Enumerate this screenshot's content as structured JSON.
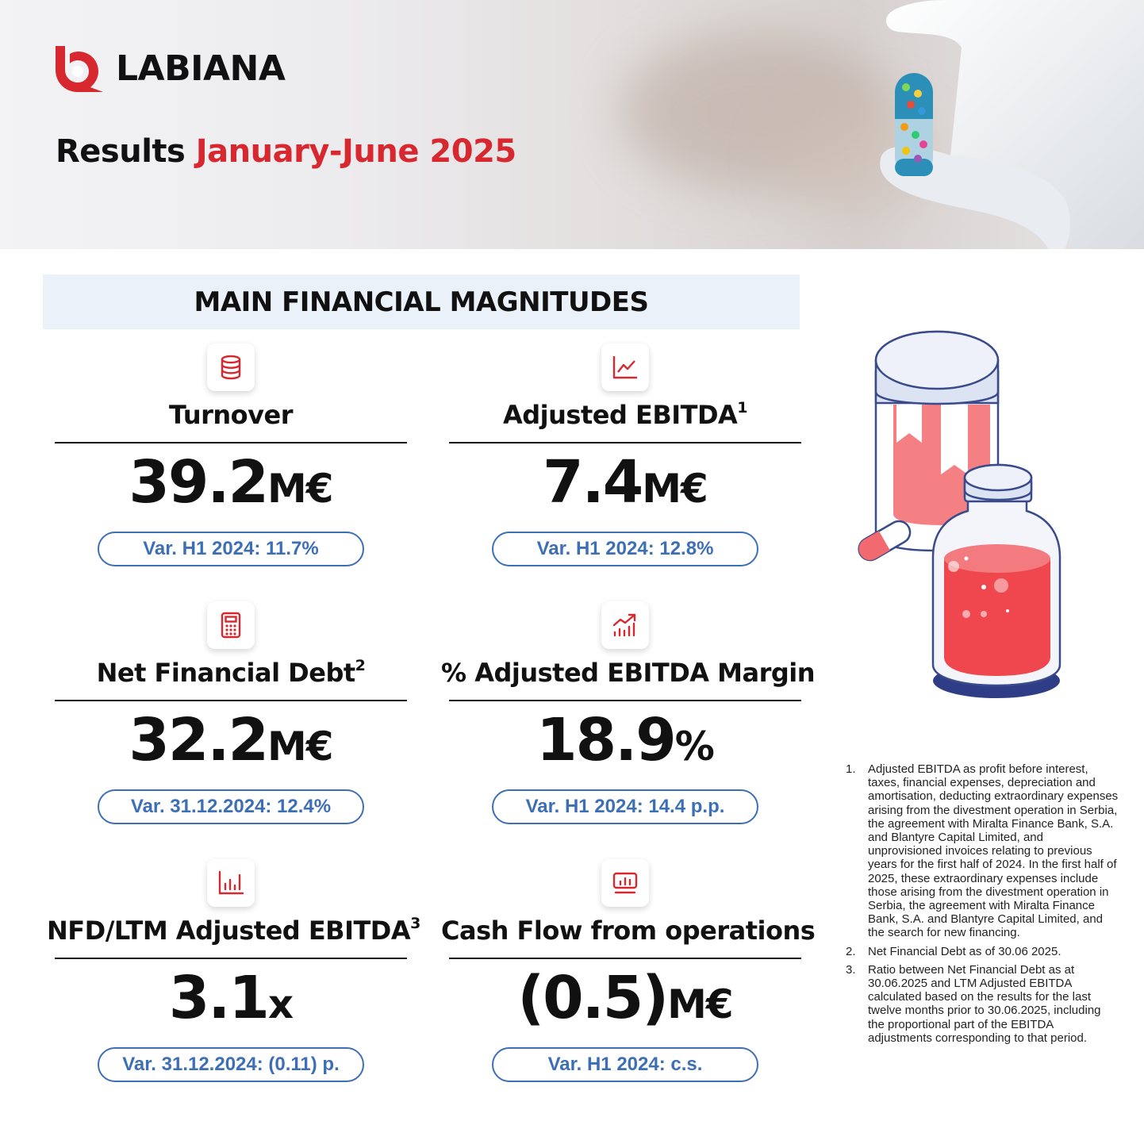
{
  "brand": {
    "name": "LABIANA",
    "accent_color": "#d7282f",
    "blue_color": "#3d6fb6"
  },
  "headline": {
    "prefix": "Results",
    "period": "January-June 2025"
  },
  "section_title": "MAIN FINANCIAL MAGNITUDES",
  "kpis": [
    {
      "icon": "database-icon",
      "label": "Turnover",
      "sup": "",
      "value": "39.2",
      "unit": "M€",
      "variation": "Var. H1 2024: 11.7%"
    },
    {
      "icon": "line-chart-icon",
      "label": "Adjusted EBITDA",
      "sup": "1",
      "value": "7.4",
      "unit": "M€",
      "variation": "Var. H1 2024: 12.8%"
    },
    {
      "icon": "calculator-icon",
      "label": "Net Financial Debt",
      "sup": "2",
      "value": "32.2",
      "unit": "M€",
      "variation": "Var. 31.12.2024: 12.4%"
    },
    {
      "icon": "trending-bars-icon",
      "label": "% Adjusted EBITDA Margin",
      "sup": "",
      "value": "18.9",
      "unit": "%",
      "variation": "Var. H1 2024: 14.4 p.p."
    },
    {
      "icon": "bar-chart-icon",
      "label": "NFD/LTM Adjusted EBITDA",
      "sup": "3",
      "value": "3.1",
      "unit": "x",
      "variation": "Var. 31.12.2024: (0.11) p."
    },
    {
      "icon": "monitor-chart-icon",
      "label": "Cash Flow from operations",
      "sup": "",
      "value": "(0.5)",
      "unit": "M€",
      "variation": "Var. H1 2024: c.s."
    }
  ],
  "footnotes": [
    {
      "number": "1.",
      "text": "Adjusted EBITDA as profit before interest, taxes, financial expenses, depreciation and amortisation, deducting extraordinary expenses arising from the divestment operation in Serbia, the agreement with Miralta Finance Bank, S.A. and Blantyre Capital Limited, and unprovisioned invoices relating to previous years for the first half of 2024. In the first half of 2025, these extraordinary expenses include those arising from the divestment operation in Serbia, the agreement with Miralta Finance Bank, S.A. and Blantyre Capital Limited, and the search for new financing."
    },
    {
      "number": "2.",
      "text": "Net Financial Debt as of 30.06 2025."
    },
    {
      "number": "3.",
      "text": "Ratio between Net Financial Debt as at 30.06.2025 and LTM Adjusted EBITDA calculated based on the results for the last twelve months prior to 30.06.2025, including the proportional part of the EBITDA adjustments corresponding to that period."
    }
  ]
}
